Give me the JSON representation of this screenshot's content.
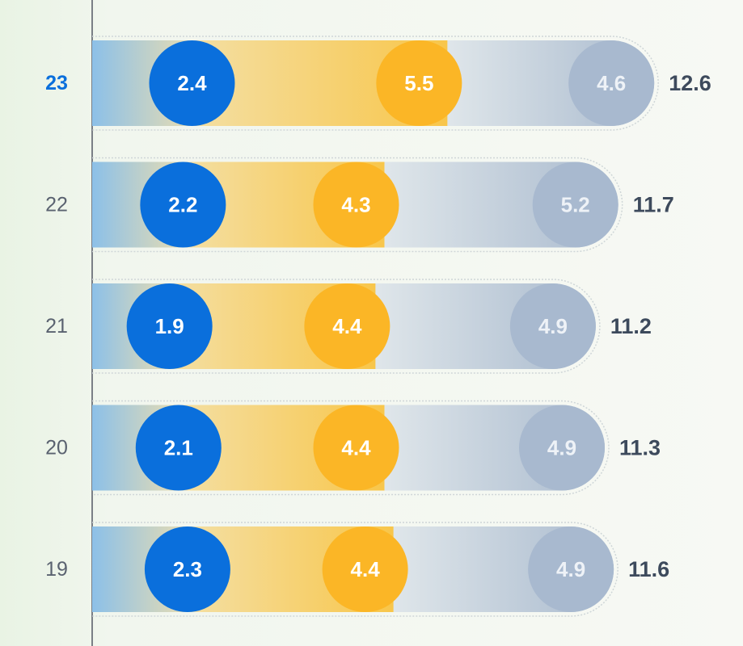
{
  "chart_data": {
    "type": "stacked-bar-horizontal",
    "categories": [
      "23",
      "22",
      "21",
      "20",
      "19"
    ],
    "series": [
      {
        "color": "#0a6fdc",
        "values": [
          2.4,
          2.2,
          1.9,
          2.1,
          2.3
        ]
      },
      {
        "color": "#fbb626",
        "values": [
          5.5,
          4.3,
          4.4,
          4.4,
          4.4
        ]
      },
      {
        "color": "#a8b9cf",
        "values": [
          4.6,
          5.2,
          4.9,
          4.9,
          4.9
        ]
      }
    ],
    "totals": [
      12.6,
      11.7,
      11.2,
      11.3,
      11.6
    ],
    "xlim": [
      0,
      13
    ],
    "highlight_category": 0,
    "highlight_color": "#0a6fdc"
  }
}
